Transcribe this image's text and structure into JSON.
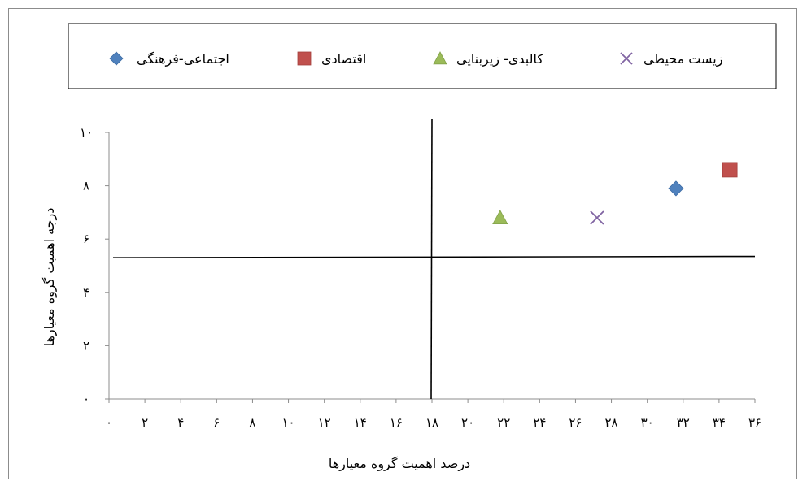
{
  "chart_data": {
    "type": "scatter",
    "xlabel": "درصد اهمیت گروه معیارها",
    "ylabel": "درجه اهمیت گروه معیارها",
    "xlim": [
      0,
      36
    ],
    "ylim": [
      0,
      10
    ],
    "x_ticks": [
      {
        "value": 0,
        "label": "۰"
      },
      {
        "value": 2,
        "label": "۲"
      },
      {
        "value": 4,
        "label": "۴"
      },
      {
        "value": 6,
        "label": "۶"
      },
      {
        "value": 8,
        "label": "۸"
      },
      {
        "value": 10,
        "label": "۱۰"
      },
      {
        "value": 12,
        "label": "۱۲"
      },
      {
        "value": 14,
        "label": "۱۴"
      },
      {
        "value": 16,
        "label": "۱۶"
      },
      {
        "value": 18,
        "label": "۱۸"
      },
      {
        "value": 20,
        "label": "۲۰"
      },
      {
        "value": 22,
        "label": "۲۲"
      },
      {
        "value": 24,
        "label": "۲۴"
      },
      {
        "value": 26,
        "label": "۲۶"
      },
      {
        "value": 28,
        "label": "۲۸"
      },
      {
        "value": 30,
        "label": "۳۰"
      },
      {
        "value": 32,
        "label": "۳۲"
      },
      {
        "value": 34,
        "label": "۳۴"
      },
      {
        "value": 36,
        "label": "۳۶"
      }
    ],
    "y_ticks": [
      {
        "value": 0,
        "label": "۰"
      },
      {
        "value": 2,
        "label": "۲"
      },
      {
        "value": 4,
        "label": "۴"
      },
      {
        "value": 6,
        "label": "۶"
      },
      {
        "value": 8,
        "label": "۸"
      },
      {
        "value": 10,
        "label": "۱۰"
      }
    ],
    "series": [
      {
        "name": "اجتماعی-فرهنگی",
        "marker": "diamond",
        "color": "#4f81bd",
        "x": 31.6,
        "y": 7.9
      },
      {
        "name": "اقتصادی",
        "marker": "square",
        "color": "#c0504d",
        "x": 34.6,
        "y": 8.6
      },
      {
        "name": "کالبدی- زیربنایی",
        "marker": "triangle",
        "color": "#9bbb59",
        "x": 21.8,
        "y": 6.8
      },
      {
        "name": "زیست محیطی",
        "marker": "x",
        "color": "#8064a2",
        "x": 27.2,
        "y": 6.8
      }
    ],
    "reference_lines": {
      "vertical_x": 18,
      "horizontal_y": [
        5.3,
        5.35
      ]
    },
    "grid": false,
    "legend_position": "top"
  }
}
